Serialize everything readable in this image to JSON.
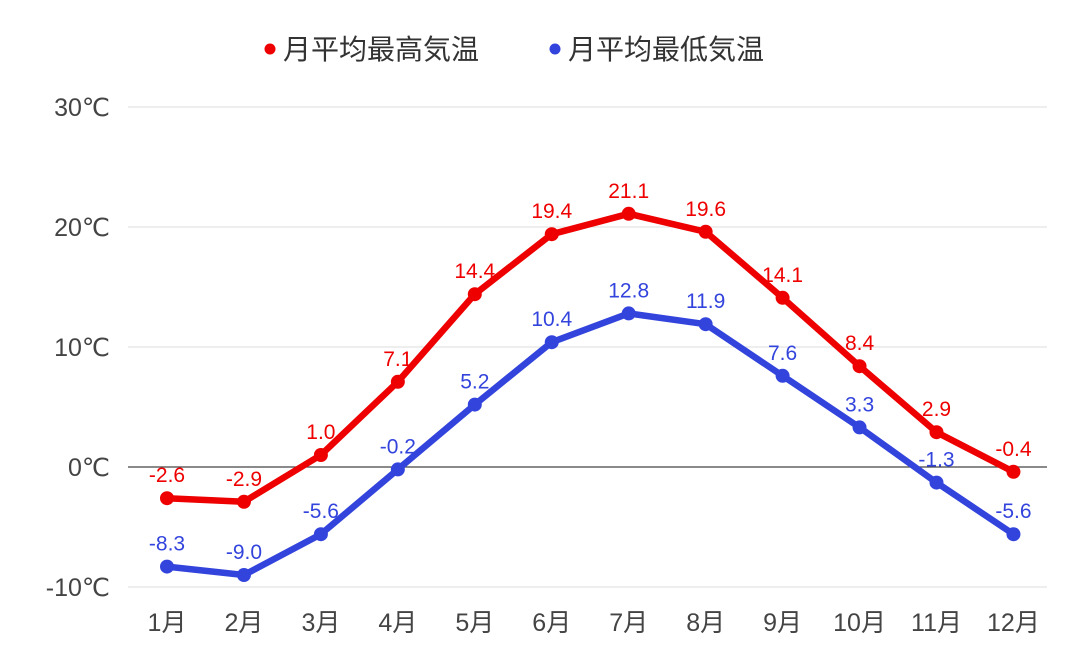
{
  "chart_data": {
    "type": "line",
    "title": "",
    "xlabel": "",
    "ylabel": "",
    "categories": [
      "1月",
      "2月",
      "3月",
      "4月",
      "5月",
      "6月",
      "7月",
      "8月",
      "9月",
      "10月",
      "11月",
      "12月"
    ],
    "y_ticks": [
      {
        "value": 30,
        "label": "30℃"
      },
      {
        "value": 20,
        "label": "20℃"
      },
      {
        "value": 10,
        "label": "10℃"
      },
      {
        "value": 0,
        "label": "0℃"
      },
      {
        "value": -10,
        "label": "-10℃"
      }
    ],
    "ylim": [
      -10,
      30
    ],
    "grid": true,
    "legend_position": "top-center",
    "series": [
      {
        "name": "月平均最高気温",
        "color": "#ee0000",
        "values": [
          -2.6,
          -2.9,
          1.0,
          7.1,
          14.4,
          19.4,
          21.1,
          19.6,
          14.1,
          8.4,
          2.9,
          -0.4
        ],
        "labels": [
          "-2.6",
          "-2.9",
          "1.0",
          "7.1",
          "14.4",
          "19.4",
          "21.1",
          "19.6",
          "14.1",
          "8.4",
          "2.9",
          "-0.4"
        ]
      },
      {
        "name": "月平均最低気温",
        "color": "#3344dd",
        "values": [
          -8.3,
          -9.0,
          -5.6,
          -0.2,
          5.2,
          10.4,
          12.8,
          11.9,
          7.6,
          3.3,
          -1.3,
          -5.6
        ],
        "labels": [
          "-8.3",
          "-9.0",
          "-5.6",
          "-0.2",
          "5.2",
          "10.4",
          "12.8",
          "11.9",
          "7.6",
          "3.3",
          "-1.3",
          "-5.6"
        ]
      }
    ]
  }
}
